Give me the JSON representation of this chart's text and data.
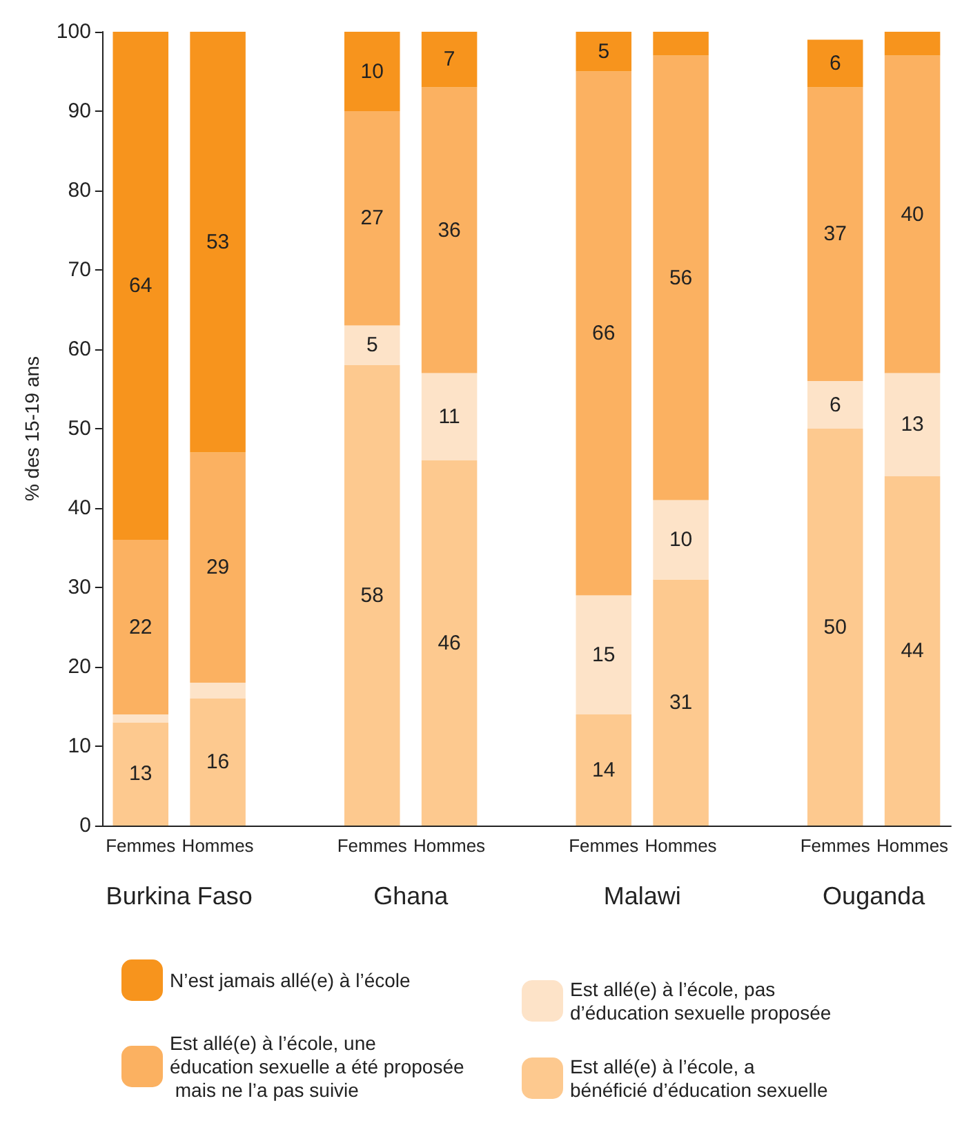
{
  "chart_data": {
    "type": "bar",
    "stacked": true,
    "ylabel": "% des 15-19 ans",
    "categories": [
      "Femmes",
      "Hommes",
      null,
      "Femmes",
      "Hommes",
      null,
      "Femmes",
      "Hommes",
      null,
      "Femmes",
      "Hommes"
    ],
    "series": [
      {
        "name": "Est allé(e) à l’école, a bénéficié d’éducation sexuelle",
        "color": "#fdc98f",
        "values": [
          13,
          16,
          null,
          58,
          46,
          null,
          14,
          31,
          null,
          50,
          44
        ],
        "value_labels": [
          "13",
          "16",
          null,
          "58",
          "46",
          null,
          "14",
          "31",
          null,
          "50",
          "44"
        ]
      },
      {
        "name": "Est allé(e) à l’école, pas d’éducation sexuelle proposée",
        "color": "#fde3c8",
        "values": [
          1,
          2,
          null,
          5,
          11,
          null,
          15,
          10,
          null,
          6,
          13
        ],
        "value_labels": [
          null,
          null,
          null,
          "5",
          "11",
          null,
          "15",
          "10",
          null,
          "6",
          "13"
        ]
      },
      {
        "name": "Est allé(e) à l’école, une éducation sexuelle a été proposée mais ne l’a pas suivie",
        "color": "#fbb161",
        "values": [
          22,
          29,
          null,
          27,
          36,
          null,
          66,
          56,
          null,
          37,
          40
        ],
        "value_labels": [
          "22",
          "29",
          null,
          "27",
          "36",
          null,
          "66",
          "56",
          null,
          "37",
          "40"
        ]
      },
      {
        "name": "N’est jamais allé(e) à l’école",
        "color": "#f7941d",
        "values": [
          64,
          53,
          null,
          10,
          7,
          null,
          5,
          3,
          null,
          6,
          3
        ],
        "value_labels": [
          "64",
          "53",
          null,
          "10",
          "7",
          null,
          "5",
          null,
          null,
          "6",
          null
        ]
      }
    ],
    "annotations": [
      "Burkina Faso",
      "Ghana",
      "Malawi",
      "Ouganda"
    ],
    "ylim": [
      0,
      100
    ],
    "yticks": [
      0,
      10,
      20,
      30,
      40,
      50,
      60,
      70,
      80,
      90,
      100
    ],
    "grid": false,
    "legend": "bottom"
  }
}
